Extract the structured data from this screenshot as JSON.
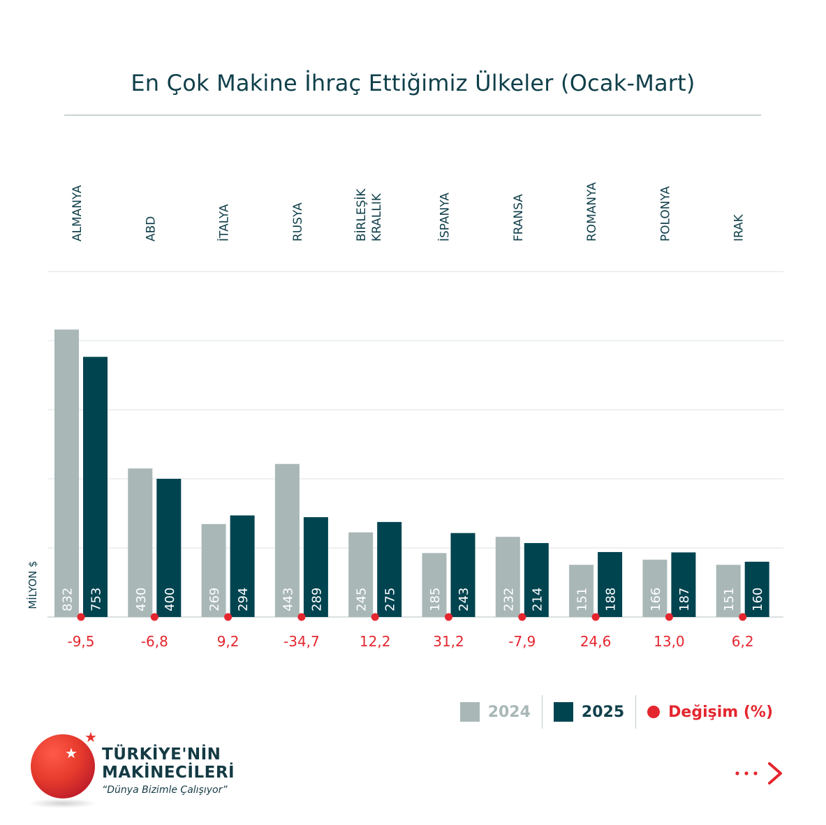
{
  "title": "En Çok Makine İhraç Ettiğimiz Ülkeler (Ocak-Mart)",
  "colors": {
    "y2024": "#a9b7b7",
    "y2025": "#004450",
    "change": "#e4262f",
    "title": "#0f3f4a"
  },
  "chart_data": {
    "type": "bar",
    "title": "En Çok Makine İhraç Ettiğimiz Ülkeler (Ocak-Mart)",
    "ylabel": "MİLYON $",
    "ylim": [
      0,
      1000
    ],
    "grid": true,
    "categories": [
      [
        "ALMANYA"
      ],
      [
        "ABD"
      ],
      [
        "İTALYA"
      ],
      [
        "RUSYA"
      ],
      [
        "BİRLEŞİK",
        "KRALLIK"
      ],
      [
        "İSPANYA"
      ],
      [
        "FRANSA"
      ],
      [
        "ROMANYA"
      ],
      [
        "POLONYA"
      ],
      [
        "IRAK"
      ]
    ],
    "series": [
      {
        "name": "2024",
        "values": [
          832,
          430,
          269,
          443,
          245,
          185,
          232,
          151,
          166,
          151
        ]
      },
      {
        "name": "2025",
        "values": [
          753,
          400,
          294,
          289,
          275,
          243,
          214,
          188,
          187,
          160
        ]
      }
    ],
    "change": {
      "name": "Değişim (%)",
      "values": [
        "-9,5",
        "-6,8",
        "9,2",
        "-34,7",
        "12,2",
        "31,2",
        "-7,9",
        "24,6",
        "13,0",
        "6,2"
      ]
    },
    "legend_position": "bottom-right"
  },
  "legend": {
    "y2024": "2024",
    "y2025": "2025",
    "change": "Değişim (%)"
  },
  "logo": {
    "line1": "TÜRKİYE'NİN",
    "line2": "MAKİNECİLERİ",
    "slogan": "“Dünya Bizimle Çalışıyor”"
  },
  "icons": {
    "logo_star": "star-icon",
    "next": "next-arrow-icon"
  }
}
